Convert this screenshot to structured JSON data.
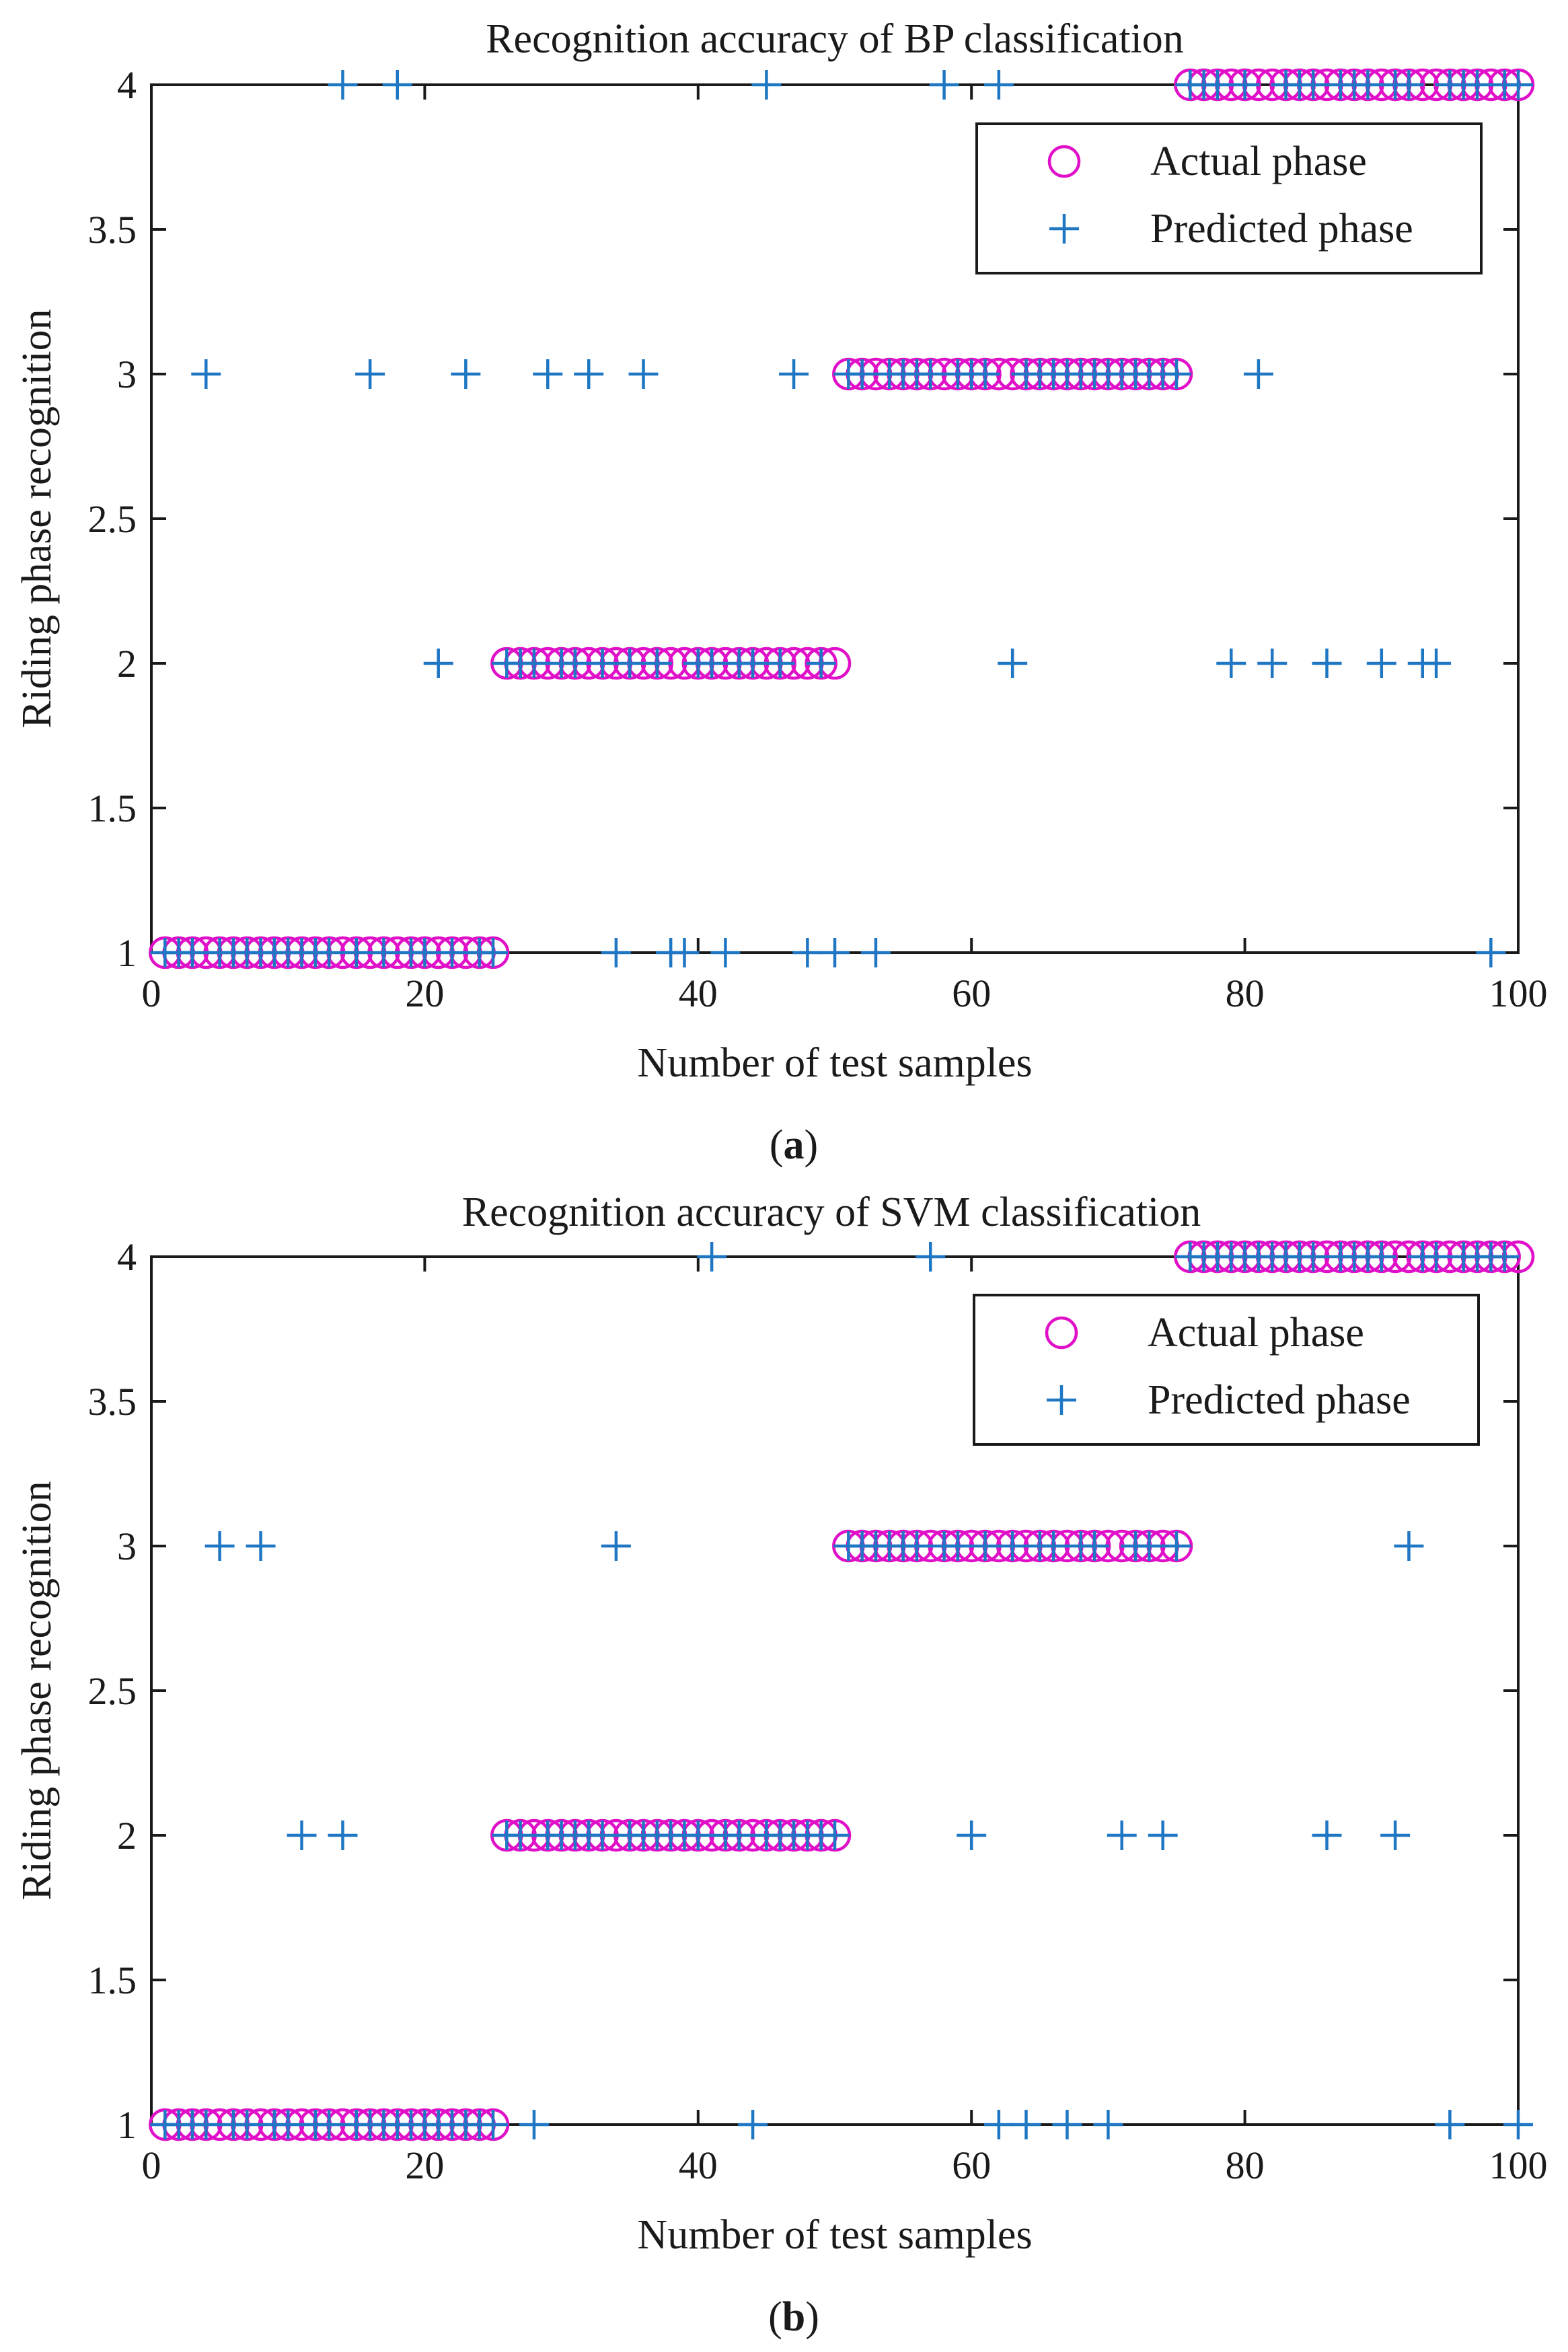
{
  "chart_data": [
    {
      "type": "scatter",
      "panel_label": "a",
      "title": "Recognition accuracy of BP  classification",
      "xlabel": "Number of test samples",
      "ylabel": "Riding phase recognition",
      "xlim": [
        0,
        100
      ],
      "ylim": [
        1,
        4
      ],
      "xticks": [
        0,
        20,
        40,
        60,
        80,
        100
      ],
      "yticks": [
        1,
        1.5,
        2,
        2.5,
        3,
        3.5,
        4
      ],
      "grid": false,
      "legend_position": "top-right",
      "series": [
        {
          "name": "Actual phase",
          "marker": "circle",
          "color": "#e010c8",
          "runs": [
            {
              "x_start": 1,
              "x_end": 25,
              "y": 1
            },
            {
              "x_start": 26,
              "x_end": 50,
              "y": 2
            },
            {
              "x_start": 51,
              "x_end": 75,
              "y": 3
            },
            {
              "x_start": 76,
              "x_end": 100,
              "y": 4
            }
          ]
        },
        {
          "name": "Predicted phase",
          "marker": "plus",
          "color": "#1f77c4",
          "points": [
            {
              "x": 1,
              "y": 1
            },
            {
              "x": 2,
              "y": 1
            },
            {
              "x": 3,
              "y": 1
            },
            {
              "x": 4,
              "y": 3
            },
            {
              "x": 5,
              "y": 1
            },
            {
              "x": 6,
              "y": 1
            },
            {
              "x": 7,
              "y": 1
            },
            {
              "x": 8,
              "y": 1
            },
            {
              "x": 9,
              "y": 1
            },
            {
              "x": 10,
              "y": 1
            },
            {
              "x": 11,
              "y": 1
            },
            {
              "x": 12,
              "y": 1
            },
            {
              "x": 13,
              "y": 1
            },
            {
              "x": 14,
              "y": 4
            },
            {
              "x": 15,
              "y": 1
            },
            {
              "x": 16,
              "y": 3
            },
            {
              "x": 17,
              "y": 1
            },
            {
              "x": 18,
              "y": 4
            },
            {
              "x": 19,
              "y": 1
            },
            {
              "x": 20,
              "y": 1
            },
            {
              "x": 21,
              "y": 2
            },
            {
              "x": 22,
              "y": 1
            },
            {
              "x": 23,
              "y": 3
            },
            {
              "x": 24,
              "y": 1
            },
            {
              "x": 25,
              "y": 1
            },
            {
              "x": 26,
              "y": 2
            },
            {
              "x": 27,
              "y": 2
            },
            {
              "x": 28,
              "y": 2
            },
            {
              "x": 29,
              "y": 3
            },
            {
              "x": 30,
              "y": 2
            },
            {
              "x": 31,
              "y": 2
            },
            {
              "x": 32,
              "y": 3
            },
            {
              "x": 33,
              "y": 2
            },
            {
              "x": 34,
              "y": 1
            },
            {
              "x": 35,
              "y": 2
            },
            {
              "x": 36,
              "y": 3
            },
            {
              "x": 37,
              "y": 2
            },
            {
              "x": 38,
              "y": 1
            },
            {
              "x": 39,
              "y": 1
            },
            {
              "x": 40,
              "y": 2
            },
            {
              "x": 41,
              "y": 2
            },
            {
              "x": 42,
              "y": 1
            },
            {
              "x": 43,
              "y": 2
            },
            {
              "x": 44,
              "y": 2
            },
            {
              "x": 45,
              "y": 4
            },
            {
              "x": 46,
              "y": 2
            },
            {
              "x": 47,
              "y": 3
            },
            {
              "x": 48,
              "y": 1
            },
            {
              "x": 49,
              "y": 2
            },
            {
              "x": 50,
              "y": 1
            },
            {
              "x": 51,
              "y": 3
            },
            {
              "x": 52,
              "y": 3
            },
            {
              "x": 53,
              "y": 1
            },
            {
              "x": 54,
              "y": 3
            },
            {
              "x": 55,
              "y": 3
            },
            {
              "x": 56,
              "y": 3
            },
            {
              "x": 57,
              "y": 3
            },
            {
              "x": 58,
              "y": 4
            },
            {
              "x": 59,
              "y": 3
            },
            {
              "x": 60,
              "y": 3
            },
            {
              "x": 61,
              "y": 3
            },
            {
              "x": 62,
              "y": 4
            },
            {
              "x": 63,
              "y": 2
            },
            {
              "x": 64,
              "y": 3
            },
            {
              "x": 65,
              "y": 3
            },
            {
              "x": 66,
              "y": 3
            },
            {
              "x": 67,
              "y": 3
            },
            {
              "x": 68,
              "y": 3
            },
            {
              "x": 69,
              "y": 3
            },
            {
              "x": 70,
              "y": 3
            },
            {
              "x": 71,
              "y": 3
            },
            {
              "x": 72,
              "y": 3
            },
            {
              "x": 73,
              "y": 3
            },
            {
              "x": 74,
              "y": 3
            },
            {
              "x": 75,
              "y": 3
            },
            {
              "x": 76,
              "y": 4
            },
            {
              "x": 77,
              "y": 4
            },
            {
              "x": 78,
              "y": 4
            },
            {
              "x": 79,
              "y": 2
            },
            {
              "x": 80,
              "y": 4
            },
            {
              "x": 81,
              "y": 3
            },
            {
              "x": 82,
              "y": 2
            },
            {
              "x": 83,
              "y": 4
            },
            {
              "x": 84,
              "y": 4
            },
            {
              "x": 85,
              "y": 4
            },
            {
              "x": 86,
              "y": 2
            },
            {
              "x": 87,
              "y": 4
            },
            {
              "x": 88,
              "y": 4
            },
            {
              "x": 89,
              "y": 4
            },
            {
              "x": 90,
              "y": 2
            },
            {
              "x": 91,
              "y": 4
            },
            {
              "x": 92,
              "y": 4
            },
            {
              "x": 93,
              "y": 2
            },
            {
              "x": 94,
              "y": 2
            },
            {
              "x": 95,
              "y": 4
            },
            {
              "x": 96,
              "y": 4
            },
            {
              "x": 97,
              "y": 4
            },
            {
              "x": 98,
              "y": 1
            },
            {
              "x": 99,
              "y": 4
            },
            {
              "x": 100,
              "y": 4
            }
          ]
        }
      ]
    },
    {
      "type": "scatter",
      "panel_label": "b",
      "title": "Recognition accuracy of SVM  classification",
      "xlabel": "Number of test samples",
      "ylabel": "Riding phase recognition",
      "xlim": [
        0,
        100
      ],
      "ylim": [
        1,
        4
      ],
      "xticks": [
        0,
        20,
        40,
        60,
        80,
        100
      ],
      "yticks": [
        1,
        1.5,
        2,
        2.5,
        3,
        3.5,
        4
      ],
      "grid": false,
      "legend_position": "top-right",
      "series": [
        {
          "name": "Actual phase",
          "marker": "circle",
          "color": "#e010c8",
          "runs": [
            {
              "x_start": 1,
              "x_end": 25,
              "y": 1
            },
            {
              "x_start": 26,
              "x_end": 50,
              "y": 2
            },
            {
              "x_start": 51,
              "x_end": 75,
              "y": 3
            },
            {
              "x_start": 76,
              "x_end": 100,
              "y": 4
            }
          ]
        },
        {
          "name": "Predicted phase",
          "marker": "plus",
          "color": "#1f77c4",
          "points": [
            {
              "x": 1,
              "y": 1
            },
            {
              "x": 2,
              "y": 1
            },
            {
              "x": 3,
              "y": 1
            },
            {
              "x": 4,
              "y": 1
            },
            {
              "x": 5,
              "y": 3
            },
            {
              "x": 6,
              "y": 1
            },
            {
              "x": 7,
              "y": 1
            },
            {
              "x": 8,
              "y": 3
            },
            {
              "x": 9,
              "y": 1
            },
            {
              "x": 10,
              "y": 1
            },
            {
              "x": 11,
              "y": 2
            },
            {
              "x": 12,
              "y": 1
            },
            {
              "x": 13,
              "y": 1
            },
            {
              "x": 14,
              "y": 2
            },
            {
              "x": 15,
              "y": 1
            },
            {
              "x": 16,
              "y": 1
            },
            {
              "x": 17,
              "y": 1
            },
            {
              "x": 18,
              "y": 1
            },
            {
              "x": 19,
              "y": 1
            },
            {
              "x": 20,
              "y": 1
            },
            {
              "x": 21,
              "y": 1
            },
            {
              "x": 22,
              "y": 1
            },
            {
              "x": 23,
              "y": 1
            },
            {
              "x": 24,
              "y": 1
            },
            {
              "x": 25,
              "y": 1
            },
            {
              "x": 26,
              "y": 2
            },
            {
              "x": 27,
              "y": 2
            },
            {
              "x": 28,
              "y": 1
            },
            {
              "x": 29,
              "y": 2
            },
            {
              "x": 30,
              "y": 2
            },
            {
              "x": 31,
              "y": 2
            },
            {
              "x": 32,
              "y": 2
            },
            {
              "x": 33,
              "y": 2
            },
            {
              "x": 34,
              "y": 3
            },
            {
              "x": 35,
              "y": 2
            },
            {
              "x": 36,
              "y": 2
            },
            {
              "x": 37,
              "y": 2
            },
            {
              "x": 38,
              "y": 2
            },
            {
              "x": 39,
              "y": 2
            },
            {
              "x": 40,
              "y": 2
            },
            {
              "x": 41,
              "y": 4
            },
            {
              "x": 42,
              "y": 2
            },
            {
              "x": 43,
              "y": 2
            },
            {
              "x": 44,
              "y": 1
            },
            {
              "x": 45,
              "y": 2
            },
            {
              "x": 46,
              "y": 2
            },
            {
              "x": 47,
              "y": 2
            },
            {
              "x": 48,
              "y": 2
            },
            {
              "x": 49,
              "y": 2
            },
            {
              "x": 50,
              "y": 2
            },
            {
              "x": 51,
              "y": 3
            },
            {
              "x": 52,
              "y": 3
            },
            {
              "x": 53,
              "y": 3
            },
            {
              "x": 54,
              "y": 3
            },
            {
              "x": 55,
              "y": 3
            },
            {
              "x": 56,
              "y": 3
            },
            {
              "x": 57,
              "y": 4
            },
            {
              "x": 58,
              "y": 3
            },
            {
              "x": 59,
              "y": 3
            },
            {
              "x": 60,
              "y": 2
            },
            {
              "x": 61,
              "y": 3
            },
            {
              "x": 62,
              "y": 1
            },
            {
              "x": 63,
              "y": 3
            },
            {
              "x": 64,
              "y": 1
            },
            {
              "x": 65,
              "y": 3
            },
            {
              "x": 66,
              "y": 3
            },
            {
              "x": 67,
              "y": 1
            },
            {
              "x": 68,
              "y": 3
            },
            {
              "x": 69,
              "y": 3
            },
            {
              "x": 70,
              "y": 1
            },
            {
              "x": 71,
              "y": 2
            },
            {
              "x": 72,
              "y": 3
            },
            {
              "x": 73,
              "y": 3
            },
            {
              "x": 74,
              "y": 2
            },
            {
              "x": 75,
              "y": 3
            },
            {
              "x": 76,
              "y": 4
            },
            {
              "x": 77,
              "y": 4
            },
            {
              "x": 78,
              "y": 4
            },
            {
              "x": 79,
              "y": 4
            },
            {
              "x": 80,
              "y": 4
            },
            {
              "x": 81,
              "y": 4
            },
            {
              "x": 82,
              "y": 4
            },
            {
              "x": 83,
              "y": 4
            },
            {
              "x": 84,
              "y": 4
            },
            {
              "x": 85,
              "y": 4
            },
            {
              "x": 86,
              "y": 2
            },
            {
              "x": 87,
              "y": 4
            },
            {
              "x": 88,
              "y": 4
            },
            {
              "x": 89,
              "y": 4
            },
            {
              "x": 90,
              "y": 4
            },
            {
              "x": 91,
              "y": 2
            },
            {
              "x": 92,
              "y": 3
            },
            {
              "x": 93,
              "y": 4
            },
            {
              "x": 94,
              "y": 4
            },
            {
              "x": 95,
              "y": 1
            },
            {
              "x": 96,
              "y": 4
            },
            {
              "x": 97,
              "y": 4
            },
            {
              "x": 98,
              "y": 4
            },
            {
              "x": 99,
              "y": 4
            },
            {
              "x": 100,
              "y": 1
            }
          ]
        }
      ]
    }
  ]
}
